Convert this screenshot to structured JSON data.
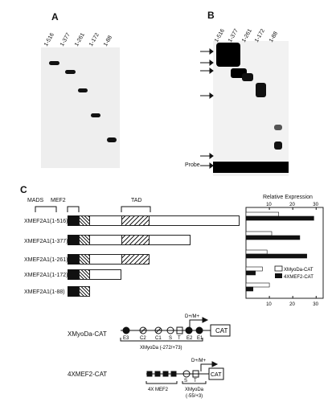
{
  "panels": {
    "a_label": "A",
    "b_label": "B",
    "c_label": "C"
  },
  "panel_a": {
    "lanes": [
      "1-516",
      "1-377",
      "1-261",
      "1-172",
      "1-88"
    ]
  },
  "panel_b": {
    "lanes": [
      "1-516",
      "1-377",
      "1-261",
      "1-172",
      "1-88"
    ],
    "probe_label": "Probe"
  },
  "panel_c": {
    "headers": {
      "mads": "MADS",
      "mef2": "MEF2",
      "tad": "TAD",
      "relative_expression": "Relative  Expression"
    },
    "constructs": [
      "XMEF2A1(1-516)",
      "XMEF2A1(1-377)",
      "XMEF2A1(1-261)",
      "XMEF2A1(1-172)",
      "XMEF2A1(1-88)"
    ],
    "top_ticks": [
      "10",
      "20",
      "30"
    ],
    "bottom_ticks": [
      "10",
      "20",
      "30"
    ],
    "legend": [
      "XMyoDa-CAT",
      "4XMEF2-CAT"
    ],
    "legend_colors": {
      "xmyoda": "#ffffff",
      "mef2": "#111111"
    }
  },
  "chart_data": {
    "type": "bar",
    "orientation": "horizontal",
    "title": "",
    "xlabel": "Relative  Expression",
    "xlim": [
      0,
      33
    ],
    "categories": [
      "XMEF2A1(1-516)",
      "XMEF2A1(1-377)",
      "XMEF2A1(1-261)",
      "XMEF2A1(1-172)",
      "XMEF2A1(1-88)"
    ],
    "series": [
      {
        "name": "XMyoDa-CAT",
        "values": [
          14,
          11,
          9,
          7,
          10
        ]
      },
      {
        "name": "4XMEF2-CAT",
        "values": [
          29,
          23,
          26,
          4,
          3
        ]
      }
    ]
  },
  "diagrams": {
    "xmyoda": {
      "name": "XMyoDa-CAT",
      "dm_label": "D+/M+",
      "elements": [
        "E3",
        "C2",
        "C1",
        "S",
        "T",
        "E2",
        "E1"
      ],
      "cat": "CAT",
      "range": "XMyoDa (-272/+73)"
    },
    "mef2": {
      "name": "4XMEF2-CAT",
      "dm_label": "D+/M+",
      "elements": [
        "S",
        "T"
      ],
      "cat": "CAT",
      "left_label": "4X  MEF2",
      "right_label": "XMyoDa",
      "range": "(-55/+3)"
    }
  }
}
